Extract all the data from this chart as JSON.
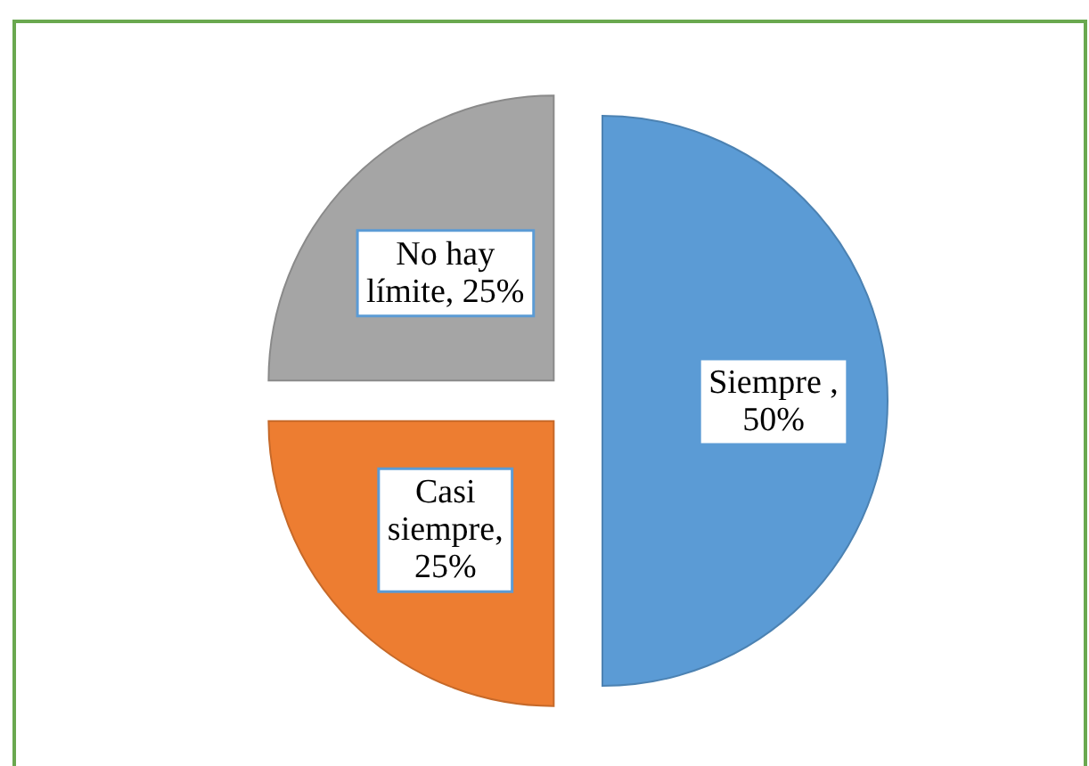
{
  "chart_data": {
    "type": "pie",
    "categories": [
      "Siempre ",
      "Casi siempre",
      "No hay límite"
    ],
    "values": [
      50,
      25,
      25
    ],
    "colors": [
      "#5b9bd5",
      "#ed7d31",
      "#a5a5a5"
    ],
    "value_labels": [
      ", 50%",
      ", 25%",
      ", 25%"
    ]
  }
}
